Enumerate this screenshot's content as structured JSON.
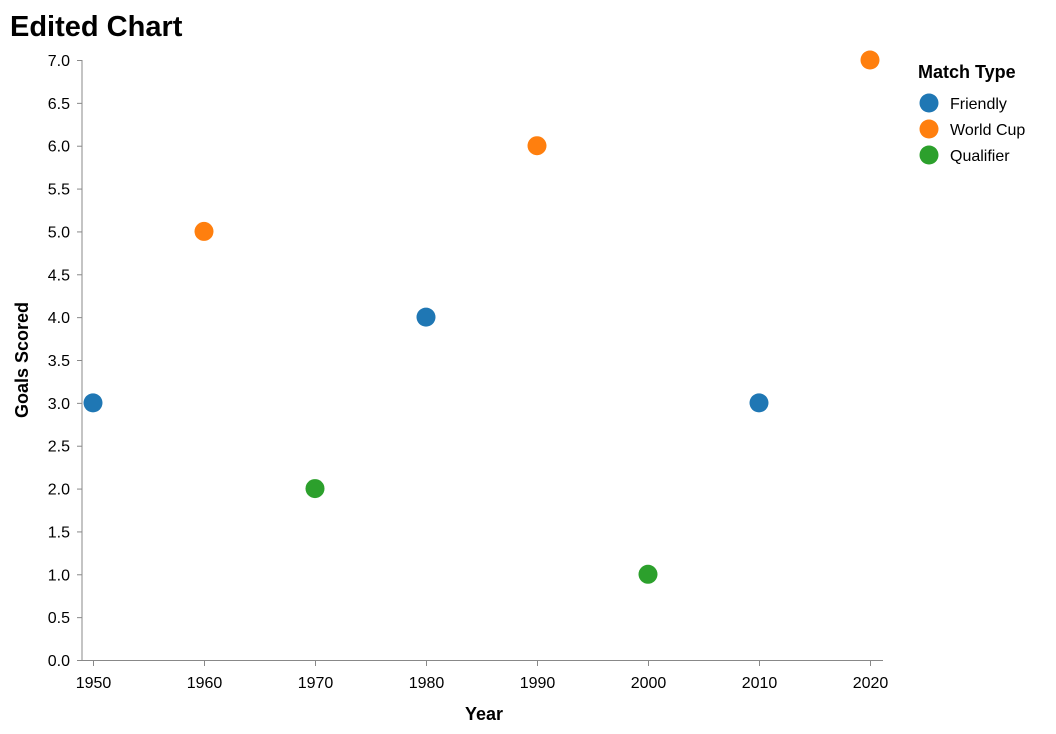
{
  "chart_data": {
    "type": "scatter",
    "title": "Edited Chart",
    "xlabel": "Year",
    "ylabel": "Goals Scored",
    "xlim": [
      1950,
      2020
    ],
    "ylim": [
      0,
      7
    ],
    "x_ticks": [
      "1950",
      "1960",
      "1970",
      "1980",
      "1990",
      "2000",
      "2010",
      "2020"
    ],
    "y_ticks": [
      "0.0",
      "0.5",
      "1.0",
      "1.5",
      "2.0",
      "2.5",
      "3.0",
      "3.5",
      "4.0",
      "4.5",
      "5.0",
      "5.5",
      "6.0",
      "6.5",
      "7.0"
    ],
    "grid": false,
    "legend": {
      "title": "Match Type",
      "position": "top-right",
      "entries": [
        {
          "label": "Friendly",
          "color": "#1f77b4"
        },
        {
          "label": "World Cup",
          "color": "#ff7f0e"
        },
        {
          "label": "Qualifier",
          "color": "#2ca02c"
        }
      ]
    },
    "points": [
      {
        "x": 1950,
        "y": 3,
        "category": "Friendly"
      },
      {
        "x": 1960,
        "y": 5,
        "category": "World Cup"
      },
      {
        "x": 1970,
        "y": 2,
        "category": "Qualifier"
      },
      {
        "x": 1980,
        "y": 4,
        "category": "Friendly"
      },
      {
        "x": 1990,
        "y": 6,
        "category": "World Cup"
      },
      {
        "x": 2000,
        "y": 1,
        "category": "Qualifier"
      },
      {
        "x": 2010,
        "y": 3,
        "category": "Friendly"
      },
      {
        "x": 2020,
        "y": 7,
        "category": "World Cup"
      }
    ]
  }
}
